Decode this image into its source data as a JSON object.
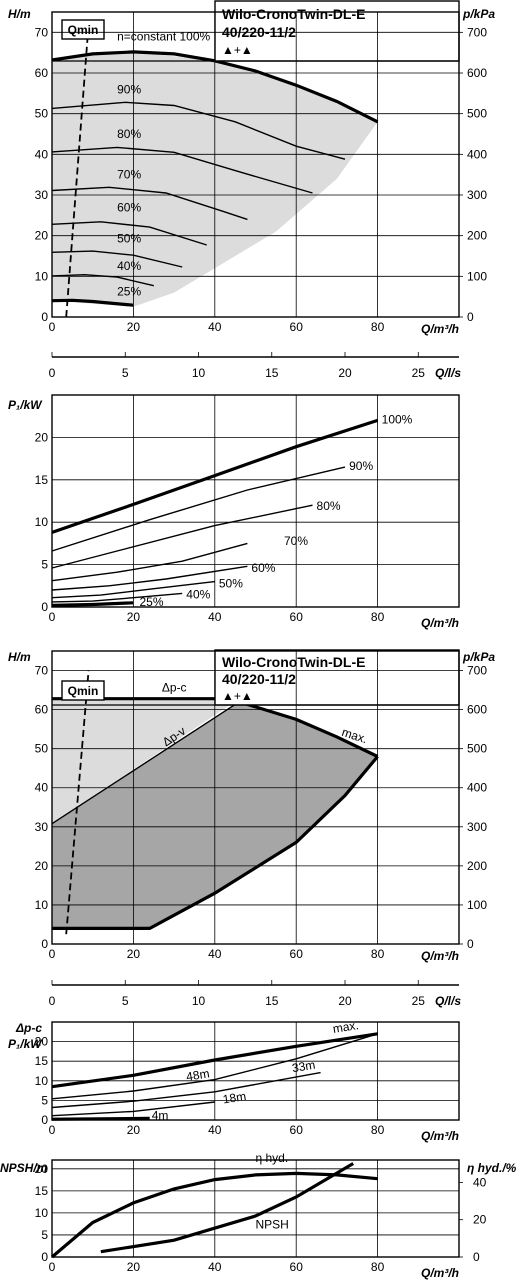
{
  "product": {
    "name": "Wilo-CronoTwin-DL-E",
    "model": "40/220-11/2",
    "mode_symbol": "▲+▲"
  },
  "chart_data": [
    {
      "id": "hq-speeds",
      "type": "line",
      "xlabel": "Q/m³/h",
      "ylabel": "H/m",
      "y2label": "p/kPa",
      "xlim": [
        0,
        100
      ],
      "ylim": [
        0,
        75
      ],
      "xticks": [
        0,
        20,
        40,
        60,
        80
      ],
      "yticks": [
        0,
        10,
        20,
        30,
        40,
        50,
        60,
        70
      ],
      "y2ticks": [
        0,
        100,
        200,
        300,
        400,
        500,
        600,
        700
      ],
      "qmin_label": "Qmin",
      "qmin_line": [
        [
          3.5,
          0
        ],
        [
          9,
          72
        ]
      ],
      "envelope": [
        [
          0,
          63.5
        ],
        [
          20,
          65.2
        ],
        [
          40,
          63
        ],
        [
          60,
          57
        ],
        [
          80,
          48
        ],
        [
          70,
          34
        ],
        [
          55,
          21
        ],
        [
          40,
          12
        ],
        [
          30,
          6
        ],
        [
          20,
          2.5
        ],
        [
          0,
          4
        ],
        [
          0,
          63.5
        ]
      ],
      "series": [
        {
          "name": "n=constant 100%",
          "bold": true,
          "points": [
            [
              0,
              63.2
            ],
            [
              10,
              64.7
            ],
            [
              20,
              65.2
            ],
            [
              30,
              64.7
            ],
            [
              40,
              63
            ],
            [
              50,
              60.5
            ],
            [
              60,
              57
            ],
            [
              70,
              53
            ],
            [
              80,
              48
            ]
          ],
          "label_xy": [
            16,
            68
          ]
        },
        {
          "name": "90%",
          "points": [
            [
              0,
              51.3
            ],
            [
              18,
              52.8
            ],
            [
              30,
              52
            ],
            [
              45,
              48
            ],
            [
              60,
              42
            ],
            [
              72,
              38.8
            ]
          ],
          "label_xy": [
            16,
            55
          ]
        },
        {
          "name": "80%",
          "points": [
            [
              0,
              40.6
            ],
            [
              16,
              41.7
            ],
            [
              30,
              40.5
            ],
            [
              45,
              36
            ],
            [
              64,
              30.5
            ]
          ],
          "label_xy": [
            16,
            44
          ]
        },
        {
          "name": "70%",
          "points": [
            [
              0,
              31.1
            ],
            [
              14,
              31.9
            ],
            [
              28,
              30.5
            ],
            [
              42,
              26
            ],
            [
              48,
              24
            ]
          ],
          "label_xy": [
            16,
            34
          ]
        },
        {
          "name": "60%",
          "points": [
            [
              0,
              22.8
            ],
            [
              12,
              23.4
            ],
            [
              24,
              22.1
            ],
            [
              38,
              17.7
            ]
          ],
          "label_xy": [
            16,
            26
          ]
        },
        {
          "name": "50%",
          "points": [
            [
              0,
              15.9
            ],
            [
              10,
              16.2
            ],
            [
              20,
              15.2
            ],
            [
              32,
              12.3
            ]
          ],
          "label_xy": [
            16,
            18.3
          ]
        },
        {
          "name": "40%",
          "points": [
            [
              0,
              10.1
            ],
            [
              8,
              10.4
            ],
            [
              16,
              9.8
            ],
            [
              25,
              7.7
            ]
          ],
          "label_xy": [
            16,
            11.6
          ]
        },
        {
          "name": "25%",
          "bold": true,
          "points": [
            [
              0,
              4
            ],
            [
              5,
              4.1
            ],
            [
              10,
              3.8
            ],
            [
              20,
              2.9
            ]
          ],
          "label_xy": [
            16,
            5.3
          ]
        }
      ]
    },
    {
      "id": "q-ls-axis",
      "type": "axis",
      "xlabel": "Q/l/s",
      "xlim": [
        0,
        27.78
      ],
      "xticks": [
        0,
        5,
        10,
        15,
        20,
        25
      ]
    },
    {
      "id": "p1-speeds",
      "type": "line",
      "xlabel": "Q/m³/h",
      "ylabel": "P₁/kW",
      "xlim": [
        0,
        100
      ],
      "ylim": [
        0,
        25
      ],
      "xticks": [
        0,
        20,
        40,
        60,
        80
      ],
      "yticks": [
        0,
        5,
        10,
        15,
        20
      ],
      "series": [
        {
          "name": "100%",
          "bold": true,
          "points": [
            [
              0,
              8.8
            ],
            [
              20,
              12.1
            ],
            [
              40,
              15.5
            ],
            [
              60,
              18.9
            ],
            [
              80,
              22
            ]
          ],
          "label_xy": [
            81,
            22.1
          ]
        },
        {
          "name": "90%",
          "points": [
            [
              0,
              6.6
            ],
            [
              24,
              10.3
            ],
            [
              48,
              13.8
            ],
            [
              72,
              16.5
            ]
          ],
          "label_xy": [
            73,
            16.6
          ]
        },
        {
          "name": "80%",
          "points": [
            [
              0,
              4.6
            ],
            [
              16,
              6.6
            ],
            [
              40,
              9.6
            ],
            [
              64,
              12
            ]
          ],
          "label_xy": [
            65,
            11.9
          ]
        },
        {
          "name": "70%",
          "points": [
            [
              0,
              3.1
            ],
            [
              16,
              4.1
            ],
            [
              32,
              5.4
            ],
            [
              48,
              7.5
            ]
          ],
          "label_xy": [
            57,
            7.8
          ]
        },
        {
          "name": "60%",
          "points": [
            [
              0,
              2
            ],
            [
              14,
              2.5
            ],
            [
              28,
              3.3
            ],
            [
              48,
              4.8
            ]
          ],
          "label_xy": [
            49,
            4.6
          ]
        },
        {
          "name": "50%",
          "points": [
            [
              0,
              1.1
            ],
            [
              12,
              1.4
            ],
            [
              24,
              2.1
            ],
            [
              40,
              3
            ]
          ],
          "label_xy": [
            41,
            2.8
          ]
        },
        {
          "name": "40%",
          "points": [
            [
              0,
              0.6
            ],
            [
              10,
              0.7
            ],
            [
              20,
              1.1
            ],
            [
              32,
              1.6
            ]
          ],
          "label_xy": [
            33,
            1.5
          ]
        },
        {
          "name": "25%",
          "bold": true,
          "points": [
            [
              0,
              0.2
            ],
            [
              10,
              0.3
            ],
            [
              20,
              0.5
            ]
          ],
          "label_xy": [
            21.5,
            0.6
          ]
        }
      ]
    },
    {
      "id": "hq-modes",
      "type": "area",
      "xlabel": "Q/m³/h",
      "ylabel": "H/m",
      "y2label": "p/kPa",
      "xlim": [
        0,
        100
      ],
      "ylim": [
        0,
        75
      ],
      "xticks": [
        0,
        20,
        40,
        60,
        80
      ],
      "yticks": [
        0,
        10,
        20,
        30,
        40,
        50,
        60,
        70
      ],
      "y2ticks": [
        0,
        100,
        200,
        300,
        400,
        500,
        600,
        700
      ],
      "qmin_label": "Qmin",
      "qmin_line": [
        [
          3.5,
          2.5
        ],
        [
          9,
          70
        ]
      ],
      "light_region": [
        [
          0,
          62.8
        ],
        [
          46,
          62.8
        ],
        [
          0,
          30.8
        ]
      ],
      "dark_region": [
        [
          0,
          30.8
        ],
        [
          46,
          62
        ],
        [
          60,
          57.5
        ],
        [
          80,
          48
        ],
        [
          72,
          38
        ],
        [
          60,
          26
        ],
        [
          40,
          13
        ],
        [
          24,
          4
        ],
        [
          0,
          4
        ]
      ],
      "series": [
        {
          "name": "Δp-c",
          "bold": true,
          "points": [
            [
              0,
              62.8
            ],
            [
              46,
              62.8
            ]
          ],
          "label_xy": [
            27,
            64.6
          ]
        },
        {
          "name": "Δp-v",
          "points": [
            [
              0,
              30.8
            ],
            [
              46,
              62
            ]
          ],
          "label_xy": [
            28,
            50.5
          ]
        },
        {
          "name": "max.",
          "bold": true,
          "points": [
            [
              46,
              62
            ],
            [
              60,
              57.5
            ],
            [
              70,
              53
            ],
            [
              80,
              48
            ]
          ],
          "label_xy": [
            71,
            53.4
          ]
        },
        {
          "name": "",
          "bold": true,
          "points": [
            [
              80,
              48
            ],
            [
              72,
              38
            ],
            [
              60,
              26
            ],
            [
              40,
              13
            ],
            [
              24,
              4
            ],
            [
              0,
              4
            ]
          ]
        }
      ]
    },
    {
      "id": "q-ls-axis-2",
      "type": "axis",
      "xlabel": "Q/l/s",
      "xlim": [
        0,
        27.78
      ],
      "xticks": [
        0,
        5,
        10,
        15,
        20,
        25
      ]
    },
    {
      "id": "p1-modes",
      "type": "line",
      "xlabel": "Q/m³/h",
      "ylabel": "P₁/kW",
      "ylabel2": "Δp-c",
      "xlim": [
        0,
        100
      ],
      "ylim": [
        0,
        25
      ],
      "xticks": [
        0,
        20,
        40,
        60,
        80
      ],
      "yticks": [
        0,
        5,
        10,
        15,
        20
      ],
      "series": [
        {
          "name": "max.",
          "bold": true,
          "points": [
            [
              0,
              8.5
            ],
            [
              20,
              11.4
            ],
            [
              40,
              15.3
            ],
            [
              60,
              18.8
            ],
            [
              80,
              22
            ]
          ],
          "label_xy": [
            69,
            23.2
          ]
        },
        {
          "name": "48m",
          "points": [
            [
              0,
              5.4
            ],
            [
              20,
              7.4
            ],
            [
              40,
              10.3
            ],
            [
              60,
              15.6
            ],
            [
              80,
              22
            ]
          ],
          "label_xy": [
            33,
            11
          ]
        },
        {
          "name": "33m",
          "points": [
            [
              0,
              3.2
            ],
            [
              20,
              4.8
            ],
            [
              40,
              7.2
            ],
            [
              66,
              12.1
            ]
          ],
          "label_xy": [
            59,
            13.2
          ]
        },
        {
          "name": "18m",
          "points": [
            [
              0,
              1.1
            ],
            [
              20,
              2.2
            ],
            [
              40,
              4.6
            ]
          ],
          "label_xy": [
            42,
            5.2
          ]
        },
        {
          "name": "4m",
          "bold": true,
          "points": [
            [
              0,
              0.2
            ],
            [
              12,
              0.3
            ],
            [
              24,
              0.4
            ]
          ],
          "label_xy": [
            24.5,
            1.1
          ]
        }
      ]
    },
    {
      "id": "npsh-eta",
      "type": "line",
      "xlabel": "Q/m³/h",
      "ylabel": "NPSH/m",
      "y2label": "η hyd./%",
      "xlim": [
        0,
        100
      ],
      "ylim": [
        0,
        22
      ],
      "xticks": [
        0,
        20,
        40,
        60,
        80
      ],
      "yticks": [
        0,
        5,
        10,
        15,
        20
      ],
      "y2ticks": [
        0,
        20,
        40
      ],
      "series": [
        {
          "name": "η hyd.",
          "bold": true,
          "axis": "right",
          "points": [
            [
              0,
              0
            ],
            [
              10,
              18.5
            ],
            [
              20,
              29
            ],
            [
              30,
              36.5
            ],
            [
              40,
              41.5
            ],
            [
              50,
              44
            ],
            [
              60,
              44.8
            ],
            [
              70,
              44
            ],
            [
              80,
              42
            ]
          ],
          "label_xy": [
            50,
            22.5
          ]
        },
        {
          "name": "NPSH",
          "bold": true,
          "axis": "left",
          "points": [
            [
              12,
              1.2
            ],
            [
              30,
              3.8
            ],
            [
              50,
              9.3
            ],
            [
              60,
              13.6
            ],
            [
              74,
              21.2
            ]
          ],
          "label_xy": [
            50,
            7.4
          ]
        }
      ]
    }
  ]
}
